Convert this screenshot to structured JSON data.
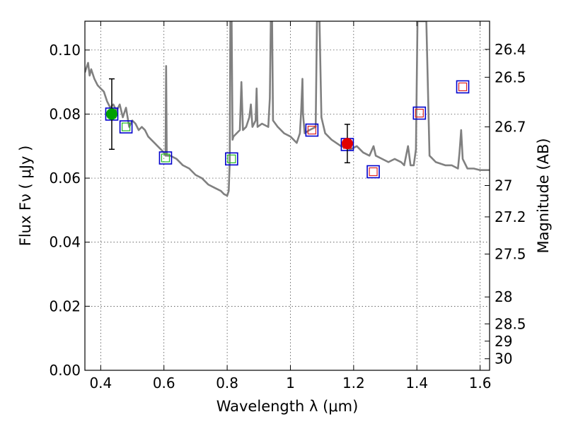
{
  "chart_data": {
    "type": "scatter",
    "xlabel": "Wavelength  λ (μm)",
    "ylabel": "Flux  Fν  ( μJy )",
    "y2label": "Magnitude (AB)",
    "xlim": [
      0.35,
      1.63
    ],
    "ylim": [
      0.0,
      0.109
    ],
    "grid": true,
    "legend": "none",
    "x_ticks": [
      0.4,
      0.6,
      0.8,
      1.0,
      1.2,
      1.4,
      1.6
    ],
    "x_tick_labels": [
      "0.4",
      "0.6",
      "0.8",
      "1",
      "1.2",
      "1.4",
      "1.6"
    ],
    "y_ticks": [
      0.0,
      0.02,
      0.04,
      0.06,
      0.08,
      0.1
    ],
    "y_tick_labels": [
      "0.00",
      "0.02",
      "0.04",
      "0.06",
      "0.08",
      "0.10"
    ],
    "y2_ticks": [
      {
        "label": "26.4",
        "flux": 0.1002
      },
      {
        "label": "26.5",
        "flux": 0.0915
      },
      {
        "label": "26.7",
        "flux": 0.076
      },
      {
        "label": "27",
        "flux": 0.0577
      },
      {
        "label": "27.2",
        "flux": 0.0479
      },
      {
        "label": "27.5",
        "flux": 0.0363
      },
      {
        "label": "28",
        "flux": 0.0229
      },
      {
        "label": "28.5",
        "flux": 0.0145
      },
      {
        "label": "29",
        "flux": 0.0091
      },
      {
        "label": "30",
        "flux": 0.0036
      }
    ],
    "series": [
      {
        "kind": "model_spectrum",
        "color": "#808080",
        "points": [
          [
            0.35,
            0.093
          ],
          [
            0.36,
            0.096
          ],
          [
            0.365,
            0.092
          ],
          [
            0.37,
            0.094
          ],
          [
            0.38,
            0.091
          ],
          [
            0.39,
            0.089
          ],
          [
            0.4,
            0.088
          ],
          [
            0.41,
            0.087
          ],
          [
            0.42,
            0.084
          ],
          [
            0.43,
            0.082
          ],
          [
            0.44,
            0.083
          ],
          [
            0.45,
            0.081
          ],
          [
            0.46,
            0.083
          ],
          [
            0.47,
            0.079
          ],
          [
            0.48,
            0.082
          ],
          [
            0.49,
            0.076
          ],
          [
            0.5,
            0.078
          ],
          [
            0.51,
            0.077
          ],
          [
            0.52,
            0.075
          ],
          [
            0.53,
            0.076
          ],
          [
            0.54,
            0.075
          ],
          [
            0.55,
            0.073
          ],
          [
            0.56,
            0.072
          ],
          [
            0.57,
            0.071
          ],
          [
            0.58,
            0.07
          ],
          [
            0.59,
            0.069
          ],
          [
            0.6,
            0.068
          ],
          [
            0.605,
            0.067
          ],
          [
            0.607,
            0.095
          ],
          [
            0.609,
            0.067
          ],
          [
            0.62,
            0.067
          ],
          [
            0.64,
            0.066
          ],
          [
            0.66,
            0.064
          ],
          [
            0.68,
            0.063
          ],
          [
            0.7,
            0.061
          ],
          [
            0.72,
            0.06
          ],
          [
            0.74,
            0.058
          ],
          [
            0.76,
            0.057
          ],
          [
            0.78,
            0.056
          ],
          [
            0.79,
            0.055
          ],
          [
            0.8,
            0.0545
          ],
          [
            0.805,
            0.056
          ],
          [
            0.808,
            0.065
          ],
          [
            0.81,
            0.109
          ],
          [
            0.814,
            0.109
          ],
          [
            0.817,
            0.072
          ],
          [
            0.82,
            0.073
          ],
          [
            0.83,
            0.074
          ],
          [
            0.84,
            0.075
          ],
          [
            0.845,
            0.09
          ],
          [
            0.85,
            0.075
          ],
          [
            0.86,
            0.076
          ],
          [
            0.87,
            0.079
          ],
          [
            0.875,
            0.083
          ],
          [
            0.88,
            0.076
          ],
          [
            0.89,
            0.078
          ],
          [
            0.893,
            0.088
          ],
          [
            0.896,
            0.076
          ],
          [
            0.91,
            0.077
          ],
          [
            0.93,
            0.076
          ],
          [
            0.935,
            0.085
          ],
          [
            0.938,
            0.109
          ],
          [
            0.942,
            0.109
          ],
          [
            0.945,
            0.078
          ],
          [
            0.96,
            0.076
          ],
          [
            0.98,
            0.074
          ],
          [
            1.0,
            0.073
          ],
          [
            1.02,
            0.071
          ],
          [
            1.03,
            0.074
          ],
          [
            1.034,
            0.081
          ],
          [
            1.038,
            0.091
          ],
          [
            1.04,
            0.08
          ],
          [
            1.045,
            0.074
          ],
          [
            1.06,
            0.075
          ],
          [
            1.08,
            0.076
          ],
          [
            1.084,
            0.109
          ],
          [
            1.092,
            0.109
          ],
          [
            1.098,
            0.079
          ],
          [
            1.11,
            0.074
          ],
          [
            1.13,
            0.072
          ],
          [
            1.16,
            0.07
          ],
          [
            1.19,
            0.069
          ],
          [
            1.21,
            0.07
          ],
          [
            1.23,
            0.068
          ],
          [
            1.25,
            0.067
          ],
          [
            1.263,
            0.07
          ],
          [
            1.27,
            0.067
          ],
          [
            1.29,
            0.066
          ],
          [
            1.31,
            0.065
          ],
          [
            1.33,
            0.066
          ],
          [
            1.35,
            0.065
          ],
          [
            1.36,
            0.064
          ],
          [
            1.372,
            0.07
          ],
          [
            1.38,
            0.064
          ],
          [
            1.39,
            0.064
          ],
          [
            1.397,
            0.069
          ],
          [
            1.402,
            0.109
          ],
          [
            1.42,
            0.109
          ],
          [
            1.43,
            0.109
          ],
          [
            1.44,
            0.067
          ],
          [
            1.46,
            0.065
          ],
          [
            1.49,
            0.064
          ],
          [
            1.51,
            0.064
          ],
          [
            1.53,
            0.063
          ],
          [
            1.535,
            0.068
          ],
          [
            1.54,
            0.075
          ],
          [
            1.545,
            0.066
          ],
          [
            1.56,
            0.063
          ],
          [
            1.58,
            0.063
          ],
          [
            1.6,
            0.0625
          ],
          [
            1.63,
            0.0625
          ]
        ]
      },
      {
        "kind": "observed_flux",
        "points": [
          {
            "x": 0.435,
            "y": 0.08,
            "yerr": 0.011,
            "color": "#00a000"
          },
          {
            "x": 1.18,
            "y": 0.0708,
            "yerr": 0.006,
            "color": "#e00000"
          }
        ]
      },
      {
        "kind": "model_band_flux",
        "outer_color": "#0000cc",
        "points": [
          {
            "x": 0.435,
            "y": 0.08,
            "inner_color": "#22bb22"
          },
          {
            "x": 0.48,
            "y": 0.076,
            "inner_color": "#22bb22"
          },
          {
            "x": 0.605,
            "y": 0.0663,
            "inner_color": "#22bb22"
          },
          {
            "x": 0.814,
            "y": 0.066,
            "inner_color": "#22bb22"
          },
          {
            "x": 1.068,
            "y": 0.075,
            "inner_color": "#dd2222"
          },
          {
            "x": 1.18,
            "y": 0.0705,
            "inner_color": "#dd2222"
          },
          {
            "x": 1.262,
            "y": 0.062,
            "inner_color": "#dd2222"
          },
          {
            "x": 1.408,
            "y": 0.0803,
            "inner_color": "#dd2222"
          },
          {
            "x": 1.545,
            "y": 0.0885,
            "inner_color": "#dd2222"
          }
        ]
      }
    ]
  }
}
